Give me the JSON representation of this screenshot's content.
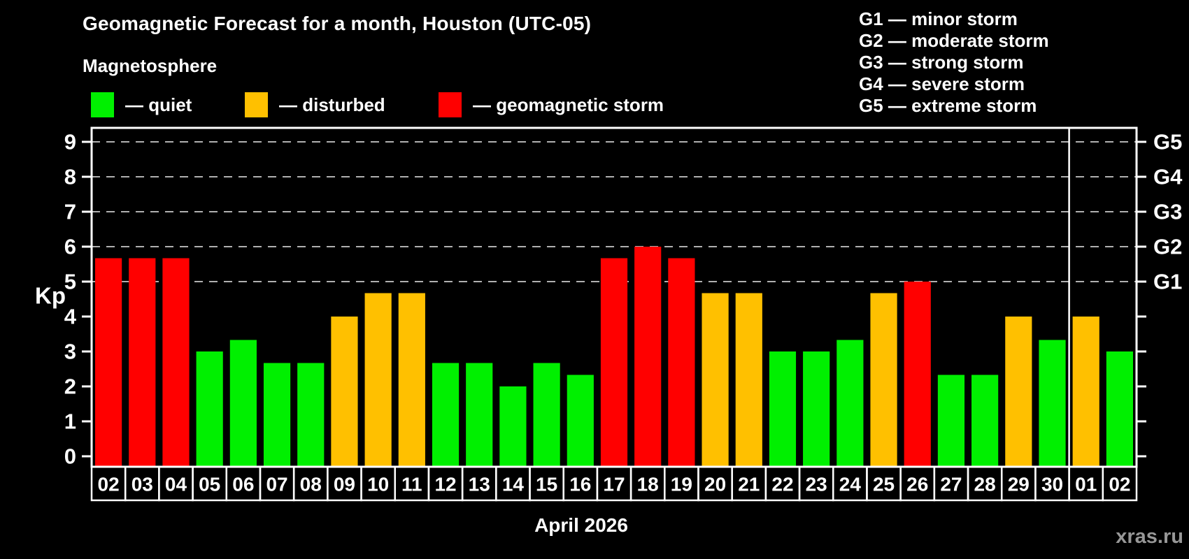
{
  "header": {
    "title": "Geomagnetic Forecast for a month, Houston (UTC-05)",
    "subtitle": "Magnetosphere"
  },
  "legend": {
    "items": [
      {
        "key": "quiet",
        "label": "— quiet",
        "color": "#00f000"
      },
      {
        "key": "disturbed",
        "label": "— disturbed",
        "color": "#ffc000"
      },
      {
        "key": "storm",
        "label": "— geomagnetic storm",
        "color": "#ff0000"
      }
    ]
  },
  "gscale_legend": {
    "items": [
      "G1 — minor storm",
      "G2 — moderate storm",
      "G3 — strong storm",
      "G4 — severe storm",
      "G5 — extreme storm"
    ]
  },
  "colors": {
    "quiet": "#00f000",
    "disturbed": "#ffc000",
    "storm": "#ff0000",
    "grid": "#b0b0b0",
    "axis": "#ffffff",
    "watermark": "#979797"
  },
  "chart_data": {
    "type": "bar",
    "title": "Geomagnetic Forecast for a month, Houston (UTC-05)",
    "ylabel": "Kp",
    "xlabel": "April 2026",
    "ylim": [
      0,
      9.5
    ],
    "yticks": [
      0,
      1,
      2,
      3,
      4,
      5,
      6,
      7,
      8,
      9
    ],
    "grid": "horizontal dashed lines at Kp 5..9 (G1..G5)",
    "legend_position": "top-left",
    "g_levels": [
      {
        "kp": 5,
        "label": "G1"
      },
      {
        "kp": 6,
        "label": "G2"
      },
      {
        "kp": 7,
        "label": "G3"
      },
      {
        "kp": 8,
        "label": "G4"
      },
      {
        "kp": 9,
        "label": "G5"
      }
    ],
    "categories": [
      "02",
      "03",
      "04",
      "05",
      "06",
      "07",
      "08",
      "09",
      "10",
      "11",
      "12",
      "13",
      "14",
      "15",
      "16",
      "17",
      "18",
      "19",
      "20",
      "21",
      "22",
      "23",
      "24",
      "25",
      "26",
      "27",
      "28",
      "29",
      "30",
      "01",
      "02"
    ],
    "values": [
      5.67,
      5.67,
      5.67,
      3.0,
      3.33,
      2.67,
      2.67,
      4.0,
      4.67,
      4.67,
      2.67,
      2.67,
      2.0,
      2.67,
      2.33,
      5.67,
      6.0,
      5.67,
      4.67,
      4.67,
      3.0,
      3.0,
      3.33,
      4.67,
      5.0,
      2.33,
      2.33,
      4.0,
      3.33,
      4.0,
      3.0
    ],
    "statuses": [
      "storm",
      "storm",
      "storm",
      "quiet",
      "quiet",
      "quiet",
      "quiet",
      "disturbed",
      "disturbed",
      "disturbed",
      "quiet",
      "quiet",
      "quiet",
      "quiet",
      "quiet",
      "storm",
      "storm",
      "storm",
      "disturbed",
      "disturbed",
      "quiet",
      "quiet",
      "quiet",
      "disturbed",
      "storm",
      "quiet",
      "quiet",
      "disturbed",
      "quiet",
      "disturbed",
      "quiet"
    ],
    "month_separator_after_index": 28
  },
  "footer": {
    "caption": "April 2026",
    "watermark": "xras.ru"
  }
}
